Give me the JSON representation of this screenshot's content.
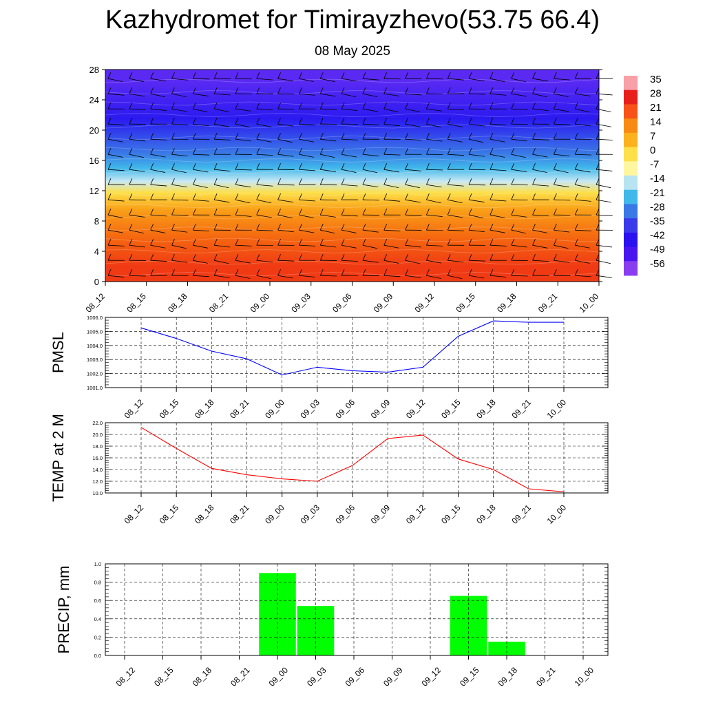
{
  "header": {
    "title": "Kazhydromet for Timirayzhevo(53.75 66.4)",
    "subtitle": "08 May 2025"
  },
  "chart_data": [
    {
      "type": "heatmap",
      "id": "cross-section",
      "x_categories": [
        "08_12",
        "08_15",
        "08_18",
        "08_21",
        "09_00",
        "09_03",
        "09_06",
        "09_09",
        "09_12",
        "09_15",
        "09_18",
        "09_21",
        "10_00"
      ],
      "y_ticks": [
        0,
        4,
        8,
        12,
        16,
        20,
        24,
        28
      ],
      "ylim": [
        0,
        28
      ],
      "colorbar": {
        "labels": [
          "35",
          "28",
          "21",
          "14",
          "7",
          "0",
          "-7",
          "-14",
          "-21",
          "-28",
          "-35",
          "-42",
          "-49",
          "-56"
        ],
        "colors": [
          "#f7a0a8",
          "#e8201c",
          "#f85218",
          "#f88a14",
          "#fbb21c",
          "#fde04a",
          "#fff6a0",
          "#b8e4f2",
          "#40b8ea",
          "#3a78e6",
          "#3a3aea",
          "#2b10f0",
          "#4a16f0",
          "#8a3cf0"
        ]
      },
      "bands": [
        {
          "from": 0,
          "to": 4,
          "color": "#f03a14"
        },
        {
          "from": 4,
          "to": 8,
          "color": "#f56a10"
        },
        {
          "from": 8,
          "to": 11,
          "color": "#f9a018"
        },
        {
          "from": 11,
          "to": 12.5,
          "color": "#fde04a"
        },
        {
          "from": 12.5,
          "to": 14,
          "color": "#c8e8f4"
        },
        {
          "from": 14,
          "to": 16,
          "color": "#40b8ea"
        },
        {
          "from": 16,
          "to": 18,
          "color": "#3a78e6"
        },
        {
          "from": 18,
          "to": 25,
          "color": "#2b1af0"
        },
        {
          "from": 25,
          "to": 28,
          "color": "#5a2af2"
        }
      ]
    },
    {
      "type": "line",
      "id": "pmsl",
      "ylabel": "PMSL",
      "categories": [
        "08_12",
        "08_15",
        "08_18",
        "08_21",
        "09_00",
        "09_03",
        "09_06",
        "09_09",
        "09_12",
        "09_15",
        "09_18",
        "09_21",
        "10_00"
      ],
      "y_ticks": [
        "1001.0",
        "1002.0",
        "1003.0",
        "1004.0",
        "1005.0",
        "1006.0"
      ],
      "ylim": [
        1001.0,
        1006.0
      ],
      "series": [
        {
          "values": [
            1005.25,
            1004.5,
            1003.6,
            1003.05,
            1001.9,
            1002.45,
            1002.2,
            1002.1,
            1002.45,
            1004.65,
            1005.75,
            1005.65,
            1005.65
          ],
          "color": "#0000ff"
        }
      ],
      "grid": true
    },
    {
      "type": "line",
      "id": "temp",
      "ylabel": "TEMP at 2 M",
      "categories": [
        "08_12",
        "08_15",
        "08_18",
        "08_21",
        "09_00",
        "09_03",
        "09_06",
        "09_09",
        "09_12",
        "09_15",
        "09_18",
        "09_21",
        "10_00"
      ],
      "y_ticks": [
        "10.0",
        "12.0",
        "14.0",
        "16.0",
        "18.0",
        "20.0",
        "22.0"
      ],
      "ylim": [
        10.0,
        22.0
      ],
      "series": [
        {
          "values": [
            21.2,
            17.6,
            14.2,
            13.1,
            12.4,
            12.0,
            14.7,
            19.3,
            19.9,
            15.8,
            14.0,
            10.7,
            10.2
          ],
          "color": "#ff0000"
        }
      ],
      "grid": true
    },
    {
      "type": "bar",
      "id": "precip",
      "ylabel": "PRECIP, mm",
      "categories": [
        "08_12",
        "08_15",
        "08_18",
        "08_21",
        "09_00",
        "09_03",
        "09_06",
        "09_09",
        "09_12",
        "09_15",
        "09_18",
        "09_21",
        "10_00"
      ],
      "y_ticks": [
        "0.0",
        "0.2",
        "0.4",
        "0.6",
        "0.8",
        "1.0"
      ],
      "ylim": [
        0.0,
        1.0
      ],
      "bars": [
        {
          "center": "09_00",
          "value": 0.9
        },
        {
          "center": "09_03",
          "value": 0.54
        },
        {
          "center": "09_15",
          "value": 0.65
        },
        {
          "center": "09_18",
          "value": 0.15
        }
      ],
      "color": "#00ff00",
      "grid": true
    }
  ]
}
